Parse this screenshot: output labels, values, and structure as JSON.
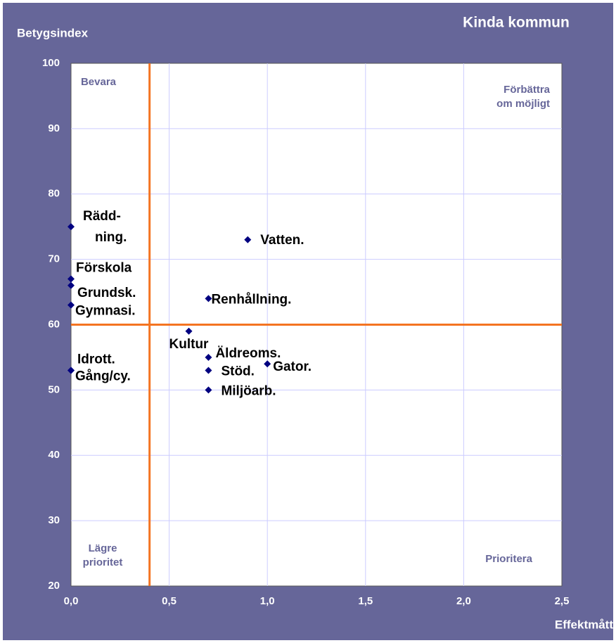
{
  "chart_data": {
    "type": "scatter",
    "title": "Kinda kommun",
    "y_label": "Betygsindex",
    "x_label": "Effektmått",
    "xlim": [
      0,
      2.5
    ],
    "ylim": [
      20,
      100
    ],
    "xticks": [
      {
        "value": 0,
        "label": "0,0"
      },
      {
        "value": 0.5,
        "label": "0,5"
      },
      {
        "value": 1,
        "label": "1,0"
      },
      {
        "value": 1.5,
        "label": "1,5"
      },
      {
        "value": 2,
        "label": "2,0"
      },
      {
        "value": 2.5,
        "label": "2,5"
      }
    ],
    "yticks": [
      20,
      30,
      40,
      50,
      60,
      70,
      80,
      90,
      100
    ],
    "grid": true,
    "color": "#000080",
    "reference_color": "#f47421",
    "vlines": [
      0.4
    ],
    "hlines": [
      60
    ],
    "quadrant_labels": {
      "top_left": [
        "Bevara"
      ],
      "top_right": [
        "Förbättra",
        "om möjligt"
      ],
      "bottom_left": [
        "Lägre",
        "prioritet"
      ],
      "bottom_right": [
        "Prioritera"
      ]
    },
    "points": [
      {
        "label": [
          "Rädd-",
          "ning."
        ],
        "x": 0,
        "y": 75
      },
      {
        "label": [
          "Förskola"
        ],
        "x": 0,
        "y": 67
      },
      {
        "label": [
          "Grundsk."
        ],
        "x": 0,
        "y": 66
      },
      {
        "label": [
          "Gymnasi."
        ],
        "x": 0,
        "y": 63
      },
      {
        "label": [
          "Idrott."
        ],
        "x": 0,
        "y": 53
      },
      {
        "label": [
          "Gång/cy."
        ],
        "x": 0,
        "y": 53
      },
      {
        "label": [
          "Vatten."
        ],
        "x": 0.9,
        "y": 73
      },
      {
        "label": [
          "Renhållning."
        ],
        "x": 0.7,
        "y": 64
      },
      {
        "label": [
          "Kultur"
        ],
        "x": 0.6,
        "y": 59
      },
      {
        "label": [
          "Äldreoms."
        ],
        "x": 0.7,
        "y": 55
      },
      {
        "label": [
          "Stöd."
        ],
        "x": 0.7,
        "y": 53
      },
      {
        "label": [
          "Gator."
        ],
        "x": 1.0,
        "y": 54
      },
      {
        "label": [
          "Miljöarb."
        ],
        "x": 0.7,
        "y": 50
      }
    ]
  }
}
